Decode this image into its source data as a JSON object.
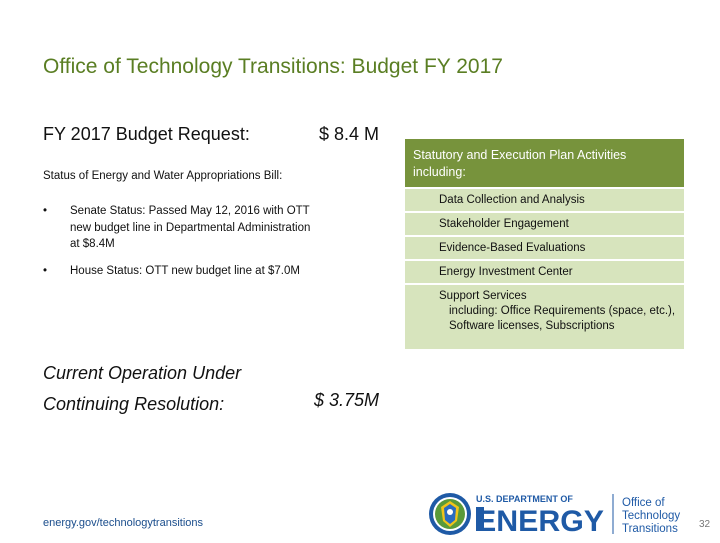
{
  "slide": {
    "title": "Office of Technology Transitions: Budget FY 2017",
    "budget_request_label": "FY 2017 Budget Request:",
    "budget_request_value": "$ 8.4 M",
    "status_heading": "Status of Energy and Water Appropriations Bill:",
    "bullets": [
      {
        "marker": "•",
        "text": "Senate Status: Passed May 12, 2016 with OTT new budget line in Departmental Administration at $8.4M"
      },
      {
        "marker": "•",
        "text": "House Status: OTT new budget line at $7.0M"
      }
    ],
    "cr_label_line1": "Current Operation Under",
    "cr_label_line2": "Continuing Resolution:",
    "cr_value": "$ 3.75M"
  },
  "activities_table": {
    "header": "Statutory and Execution Plan Activities including:",
    "rows": [
      "Data Collection and Analysis",
      "Stakeholder Engagement",
      "Evidence-Based Evaluations",
      "Energy Investment Center"
    ],
    "last_row_line1": "Support Services",
    "last_row_line2": "including: Office Requirements (space, etc.), Software licenses, Subscriptions"
  },
  "footer": {
    "url": "energy.gov/technologytransitions",
    "logo_dept": "U.S. DEPARTMENT OF",
    "logo_energy": "ENERGY",
    "logo_office_1": "Office of",
    "logo_office_2": "Technology",
    "logo_office_3": "Transitions",
    "page_number": "32"
  },
  "colors": {
    "title": "#5a7e23",
    "table_header": "#77933c",
    "table_row": "#d7e4bd",
    "url": "#1a4d8c",
    "doe_blue": "#1f5aa6"
  }
}
